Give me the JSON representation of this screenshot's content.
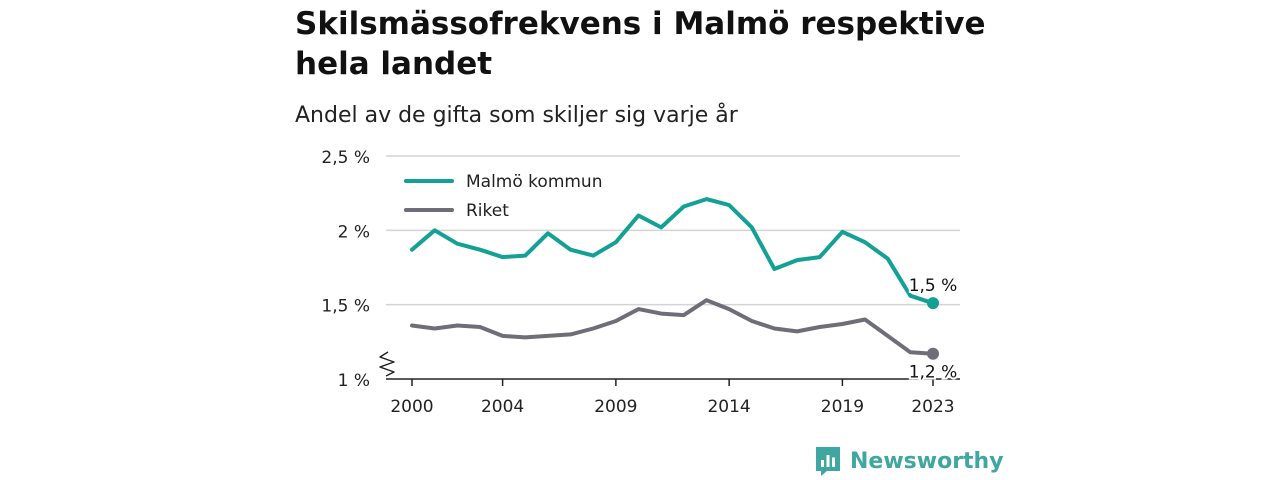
{
  "title": "Skilsmässofrekvens i Malmö respektive hela landet",
  "subtitle": "Andel av de gifta som skiljer sig varje år",
  "brand": {
    "name": "Newsworthy"
  },
  "colors": {
    "malmo": "#13a196",
    "riket": "#6e6e78",
    "grid": "#d4d4d4",
    "brand": "#3fa7a0"
  },
  "chart_data": {
    "type": "line",
    "title": "Skilsmässofrekvens i Malmö respektive hela landet",
    "subtitle": "Andel av de gifta som skiljer sig varje år",
    "xlabel": "",
    "ylabel": "",
    "x": [
      2000,
      2001,
      2002,
      2003,
      2004,
      2005,
      2006,
      2007,
      2008,
      2009,
      2010,
      2011,
      2012,
      2013,
      2014,
      2015,
      2016,
      2017,
      2018,
      2019,
      2020,
      2021,
      2022,
      2023
    ],
    "xticks": [
      2000,
      2004,
      2009,
      2014,
      2019,
      2023
    ],
    "ylim": [
      1,
      2.5
    ],
    "yticks": [
      1,
      1.5,
      2,
      2.5
    ],
    "ytick_labels": [
      "1 %",
      "1,5 %",
      "2 %",
      "2,5 %"
    ],
    "axis_break": true,
    "grid": true,
    "legend": "top-left",
    "series": [
      {
        "name": "Malmö kommun",
        "values": [
          1.87,
          2.0,
          1.91,
          1.87,
          1.82,
          1.83,
          1.98,
          1.87,
          1.83,
          1.92,
          2.1,
          2.02,
          2.16,
          2.21,
          2.17,
          2.02,
          1.74,
          1.8,
          1.82,
          1.99,
          1.92,
          1.81,
          1.56,
          1.51
        ],
        "end_label": "1,5 %"
      },
      {
        "name": "Riket",
        "values": [
          1.36,
          1.34,
          1.36,
          1.35,
          1.29,
          1.28,
          1.29,
          1.3,
          1.34,
          1.39,
          1.47,
          1.44,
          1.43,
          1.53,
          1.47,
          1.39,
          1.34,
          1.32,
          1.35,
          1.37,
          1.4,
          1.29,
          1.18,
          1.17
        ],
        "end_label": "1,2 %"
      }
    ]
  }
}
